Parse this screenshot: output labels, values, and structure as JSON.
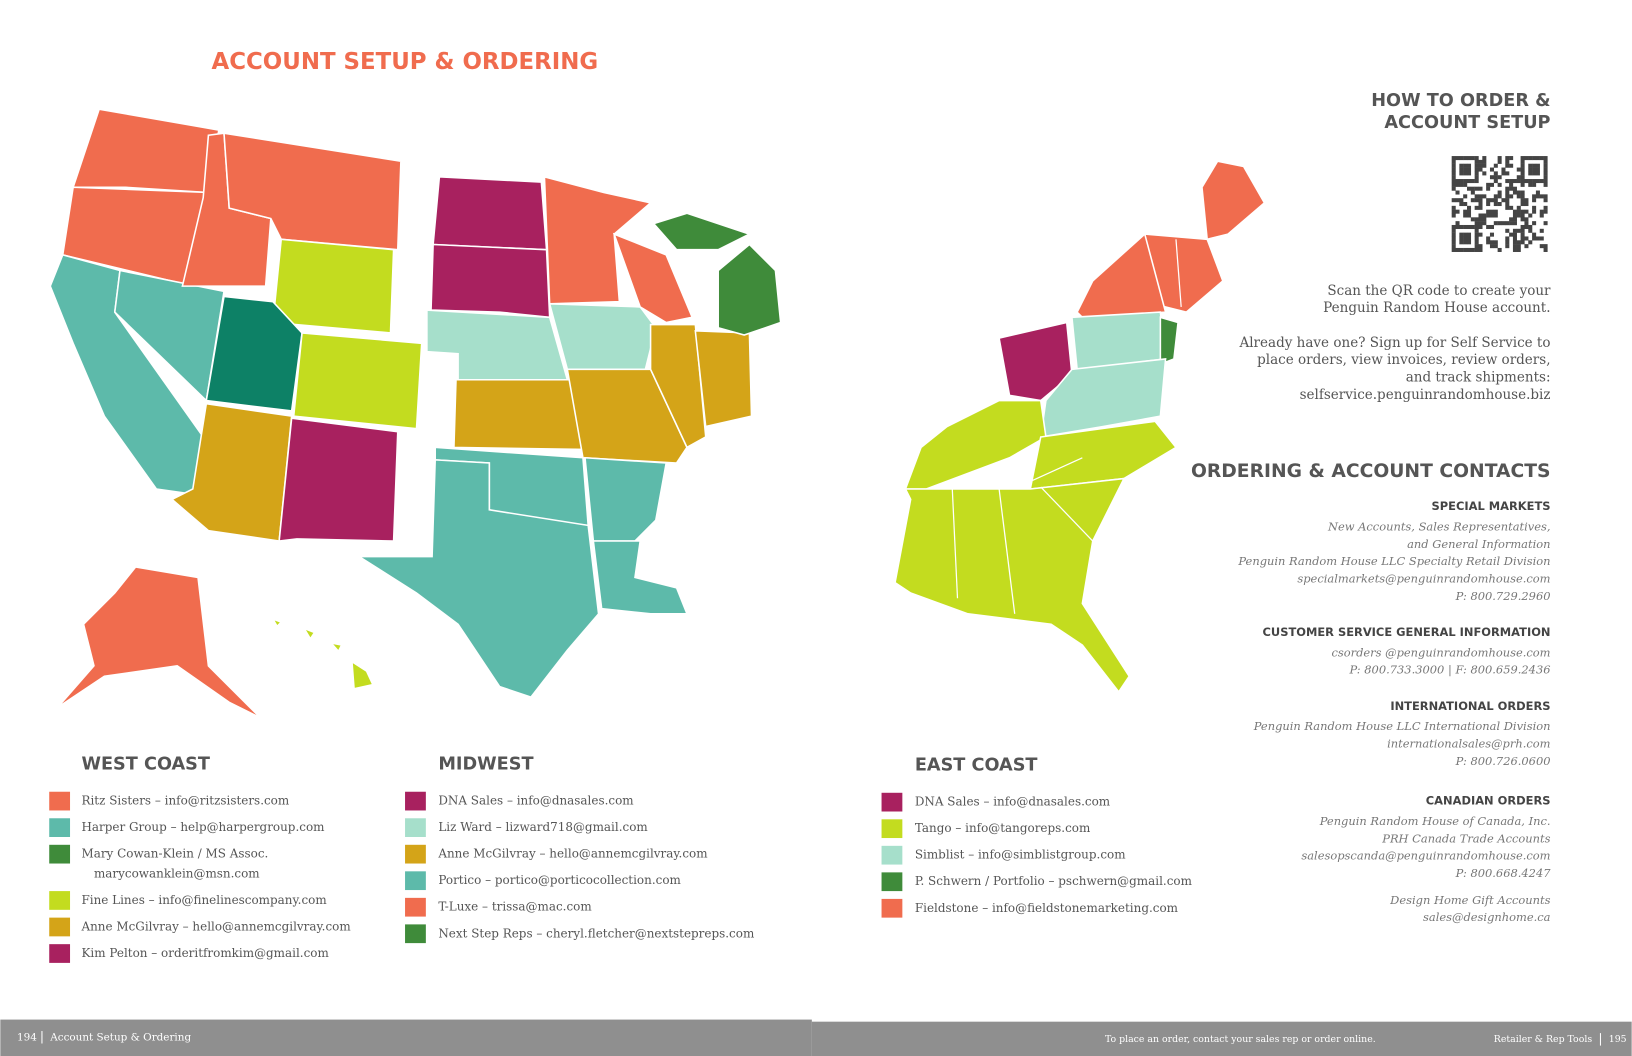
{
  "title": "ACCOUNT SETUP & ORDERING",
  "legends": [
    {
      "heading": "WEST COAST",
      "entries": [
        {
          "lines": [
            "Ritz Sisters – info@ritzsisters.com"
          ],
          "color": "#f06c4e"
        },
        {
          "lines": [
            "Harper Group – help@harpergroup.com"
          ],
          "color": "#5dbaaa"
        },
        {
          "lines": [
            "Mary Cowan-Klein / MS Assoc.",
            "marycowanklein@msn.com"
          ],
          "color": "#3f8b3a"
        },
        {
          "lines": [
            "Fine Lines – info@finelinescompany.com"
          ],
          "color": "#c3dc1f"
        },
        {
          "lines": [
            "Anne McGilvray – hello@annemcgilvray.com"
          ],
          "color": "#d4a418"
        },
        {
          "lines": [
            "Kim Pelton – orderitfromkim@gmail.com"
          ],
          "color": "#a8215f"
        }
      ]
    },
    {
      "heading": "MIDWEST",
      "entries": [
        {
          "lines": [
            "DNA Sales – info@dnasales.com"
          ],
          "color": "#a8215f"
        },
        {
          "lines": [
            "Liz Ward – lizward718@gmail.com"
          ],
          "color": "#a6dfcb"
        },
        {
          "lines": [
            "Anne McGilvray – hello@annemcgilvray.com"
          ],
          "color": "#d4a418"
        },
        {
          "lines": [
            "Portico – portico@porticocollection.com"
          ],
          "color": "#5dbaaa"
        },
        {
          "lines": [
            "T-Luxe – trissa@mac.com"
          ],
          "color": "#f06c4e"
        },
        {
          "lines": [
            "Next Step Reps – cheryl.fletcher@nextstepreps.com"
          ],
          "color": "#3f8b3a"
        }
      ]
    },
    {
      "heading": "EAST COAST",
      "entries": [
        {
          "lines": [
            "DNA Sales – info@dnasales.com"
          ],
          "color": "#a8215f"
        },
        {
          "lines": [
            "Tango – info@tangoreps.com"
          ],
          "color": "#c3dc1f"
        },
        {
          "lines": [
            "Simblist – info@simblistgroup.com"
          ],
          "color": "#a6dfcb"
        },
        {
          "lines": [
            "P. Schwern / Portfolio – pschwern@gmail.com"
          ],
          "color": "#3f8b3a"
        },
        {
          "lines": [
            "Fieldstone – info@fieldstonemarketing.com"
          ],
          "color": "#f06c4e"
        }
      ]
    }
  ],
  "how_to_order": {
    "heading": [
      "HOW TO ORDER &",
      "ACCOUNT SETUP"
    ],
    "scan": [
      "Scan the QR code to create your",
      "Penguin Random House account."
    ],
    "self_service": [
      "Already have one? Sign up for Self Service to",
      "place orders, view invoices, review orders,",
      "and track shipments:",
      "selfservice.penguinrandomhouse.biz"
    ]
  },
  "contacts": {
    "heading": "ORDERING & ACCOUNT CONTACTS",
    "groups": [
      {
        "heading": "SPECIAL MARKETS",
        "lines": [
          "New Accounts, Sales Representatives,",
          "and General Information",
          "Penguin Random House LLC Specialty Retail Division",
          "specialmarkets@penguinrandomhouse.com",
          "P: 800.729.2960"
        ]
      },
      {
        "heading": "CUSTOMER SERVICE GENERAL INFORMATION",
        "lines": [
          "csorders @penguinrandomhouse.com",
          "P: 800.733.3000 | F: 800.659.2436"
        ]
      },
      {
        "heading": "INTERNATIONAL ORDERS",
        "lines": [
          "Penguin Random House LLC International Division",
          "internationalsales@prh.com",
          "P: 800.726.0600"
        ]
      },
      {
        "heading": "CANADIAN ORDERS",
        "lines": [
          "Penguin Random House of Canada, Inc.",
          "PRH Canada Trade Accounts",
          "salesopscanda@penguinrandomhouse.com",
          "P: 800.668.4247",
          "Design Home Gift Accounts",
          "sales@designhome.ca"
        ]
      }
    ]
  },
  "footer": {
    "left_page": "194",
    "left_section": "Account Setup & Ordering",
    "right_note": "To place an order, contact your sales rep or order online.",
    "right_section": "Retailer & Rep Tools",
    "right_page": "195"
  }
}
